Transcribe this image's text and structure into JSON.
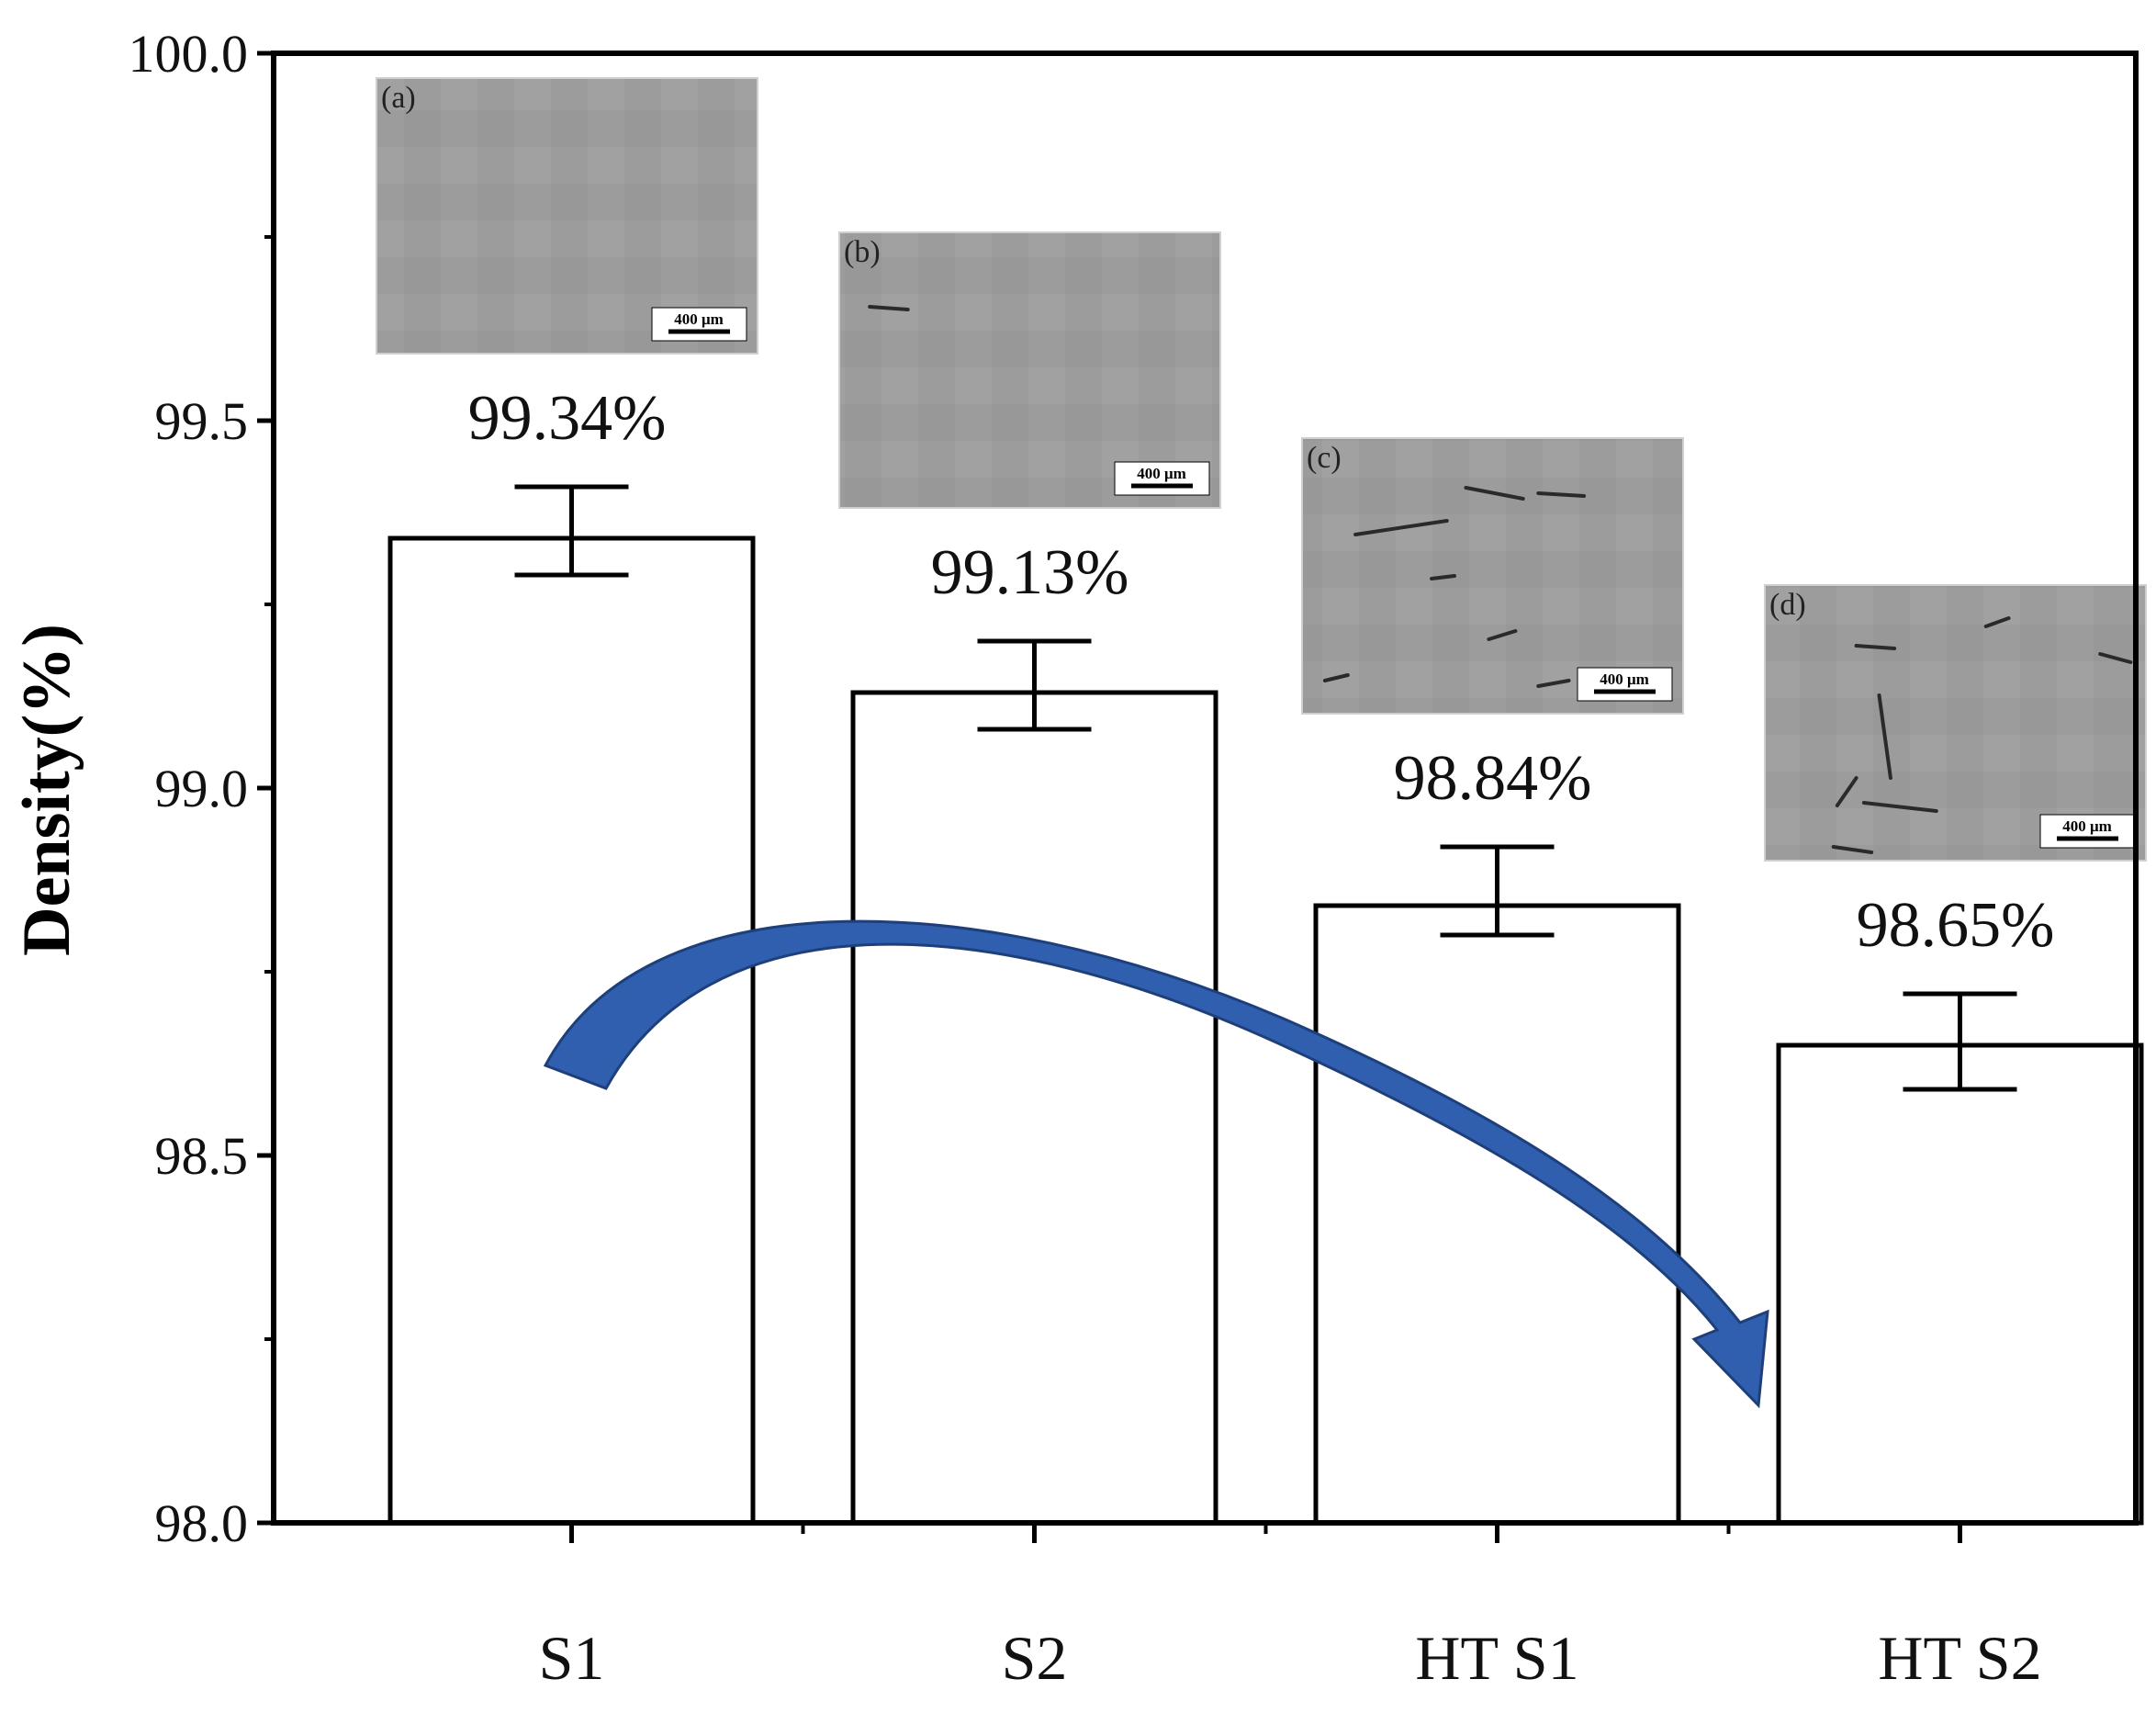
{
  "chart_data": {
    "type": "bar",
    "ylabel": "Density(%)",
    "ylim": [
      98.0,
      100.0
    ],
    "yticks": [
      "98.0",
      "98.5",
      "99.0",
      "99.5",
      "100.0"
    ],
    "categories": [
      "S1",
      "S2",
      "HT S1",
      "HT S2"
    ],
    "values": [
      99.34,
      99.13,
      98.84,
      98.65
    ],
    "value_labels": [
      "99.34%",
      "99.13%",
      "98.84%",
      "98.65%"
    ],
    "error_upper": [
      99.41,
      99.2,
      98.92,
      98.72
    ],
    "error_lower": [
      99.29,
      99.08,
      98.8,
      98.59
    ],
    "bar_color": "#ffffff",
    "bar_edge_color": "#000000",
    "arrow_color": "#2f5fae",
    "grid": false,
    "insets": [
      {
        "label": "(a)",
        "scale_bar": "400 μm"
      },
      {
        "label": "(b)",
        "scale_bar": "400 μm"
      },
      {
        "label": "(c)",
        "scale_bar": "400 μm"
      },
      {
        "label": "(d)",
        "scale_bar": "400 μm"
      }
    ]
  }
}
